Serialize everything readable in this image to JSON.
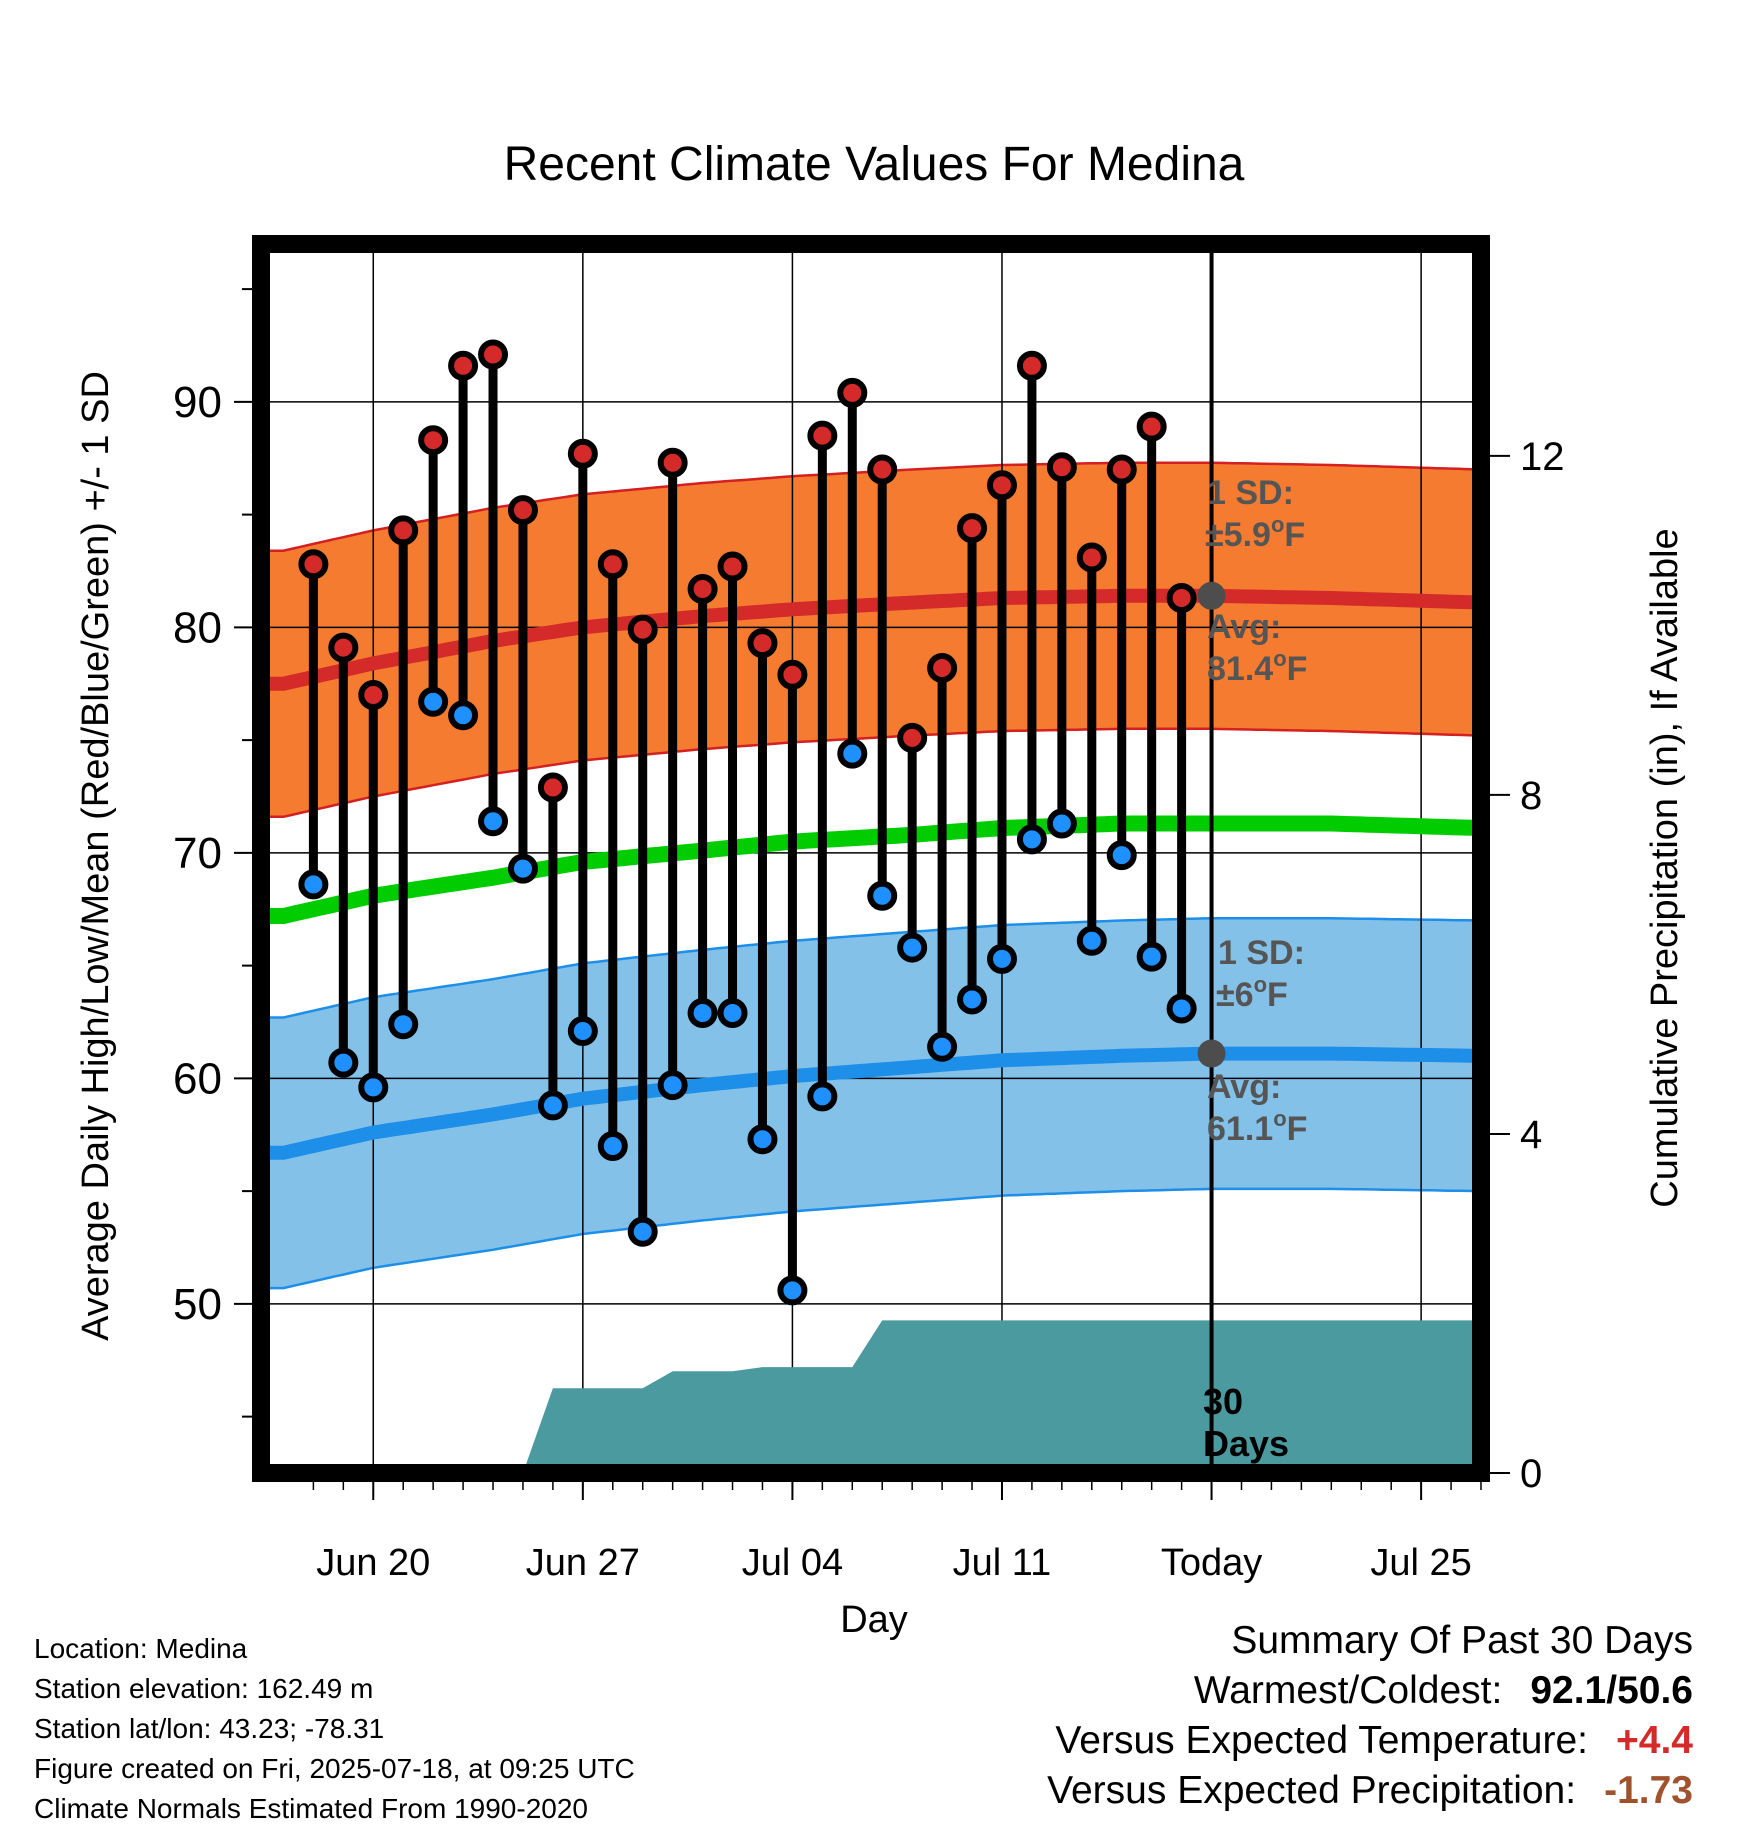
{
  "chart_data": {
    "type": "line",
    "title": "Recent Climate Values For Medina",
    "xlabel": "Day",
    "ylabel": "Average Daily High/Low/Mean (Red/Blue/Green) +/- 1 SD",
    "y2label": "Cumulative Precipitation (in), If Available",
    "ylim": [
      42.5,
      97
    ],
    "y_ticks": [
      "50",
      "60",
      "70",
      "80",
      "90"
    ],
    "y2lim": [
      0,
      14.5
    ],
    "y2_ticks": [
      "0",
      "4",
      "8",
      "12"
    ],
    "x_tick_labels": [
      "Jun 20",
      "Jun 27",
      "Jul 04",
      "Jul 11",
      "Today",
      "Jul 25"
    ],
    "x_tick_dates": [
      "2025-06-20",
      "2025-06-27",
      "2025-07-04",
      "2025-07-11",
      "2025-07-18",
      "2025-07-25"
    ],
    "x_range": [
      "2025-06-16T18:00",
      "2025-07-27T12:00"
    ],
    "today": "2025-07-18",
    "grid": true,
    "days": [
      "2025-06-18",
      "2025-06-19",
      "2025-06-20",
      "2025-06-21",
      "2025-06-22",
      "2025-06-23",
      "2025-06-24",
      "2025-06-25",
      "2025-06-26",
      "2025-06-27",
      "2025-06-28",
      "2025-06-29",
      "2025-06-30",
      "2025-07-01",
      "2025-07-02",
      "2025-07-03",
      "2025-07-04",
      "2025-07-05",
      "2025-07-06",
      "2025-07-07",
      "2025-07-08",
      "2025-07-09",
      "2025-07-10",
      "2025-07-11",
      "2025-07-12",
      "2025-07-13",
      "2025-07-14",
      "2025-07-15",
      "2025-07-16",
      "2025-07-17"
    ],
    "daily_high": [
      82.8,
      79.1,
      77.0,
      84.3,
      88.3,
      91.6,
      92.1,
      85.2,
      72.9,
      87.7,
      82.8,
      79.9,
      87.3,
      81.7,
      82.7,
      79.3,
      77.9,
      88.5,
      90.4,
      87.0,
      75.1,
      78.2,
      84.4,
      86.3,
      91.6,
      87.1,
      83.1,
      87.0,
      88.9,
      81.3
    ],
    "daily_low": [
      68.6,
      60.7,
      59.6,
      62.4,
      76.7,
      76.1,
      71.4,
      69.3,
      58.8,
      62.1,
      57.0,
      53.2,
      59.7,
      62.9,
      62.9,
      57.3,
      50.6,
      59.2,
      74.4,
      68.1,
      65.8,
      61.4,
      63.5,
      65.3,
      70.6,
      71.3,
      66.1,
      69.9,
      65.4,
      63.1
    ],
    "normal_dates": [
      "2025-06-17",
      "2025-06-20",
      "2025-06-24",
      "2025-06-27",
      "2025-07-01",
      "2025-07-04",
      "2025-07-08",
      "2025-07-11",
      "2025-07-15",
      "2025-07-18",
      "2025-07-22",
      "2025-07-27"
    ],
    "normal_high": [
      77.5,
      78.4,
      79.4,
      80.0,
      80.5,
      80.8,
      81.1,
      81.3,
      81.4,
      81.4,
      81.3,
      81.1
    ],
    "normal_high_sd": 5.9,
    "normal_low": [
      56.7,
      57.6,
      58.4,
      59.1,
      59.7,
      60.1,
      60.5,
      60.8,
      61.0,
      61.1,
      61.1,
      61.0
    ],
    "normal_low_sd": 6,
    "normal_mean": [
      67.2,
      68.1,
      68.9,
      69.6,
      70.1,
      70.5,
      70.8,
      71.1,
      71.3,
      71.3,
      71.3,
      71.1
    ],
    "precip_dates": [
      "2025-06-25",
      "2025-06-26",
      "2025-06-29",
      "2025-06-30",
      "2025-07-02",
      "2025-07-03",
      "2025-07-05",
      "2025-07-06",
      "2025-07-07",
      "2025-07-18",
      "2025-07-27"
    ],
    "precip_cum": [
      0.0,
      1.0,
      1.0,
      1.2,
      1.2,
      1.25,
      1.25,
      1.25,
      1.8,
      1.8,
      1.8
    ],
    "annotations": {
      "high_sd_label": "1 SD:",
      "high_sd_value": "±5.9",
      "high_avg_label": "Avg:",
      "high_avg_value": "81.4",
      "low_sd_label": "1 SD:",
      "low_sd_value": "±6",
      "low_avg_label": "Avg:",
      "low_avg_value": "61.1",
      "deg_symbol": "o",
      "unit": "F",
      "precip_label_line1": "30",
      "precip_label_line2": "Days"
    },
    "colors": {
      "high_band": "#f47b30",
      "high_band_edge": "#d42020",
      "high_line": "#d42a2a",
      "low_band": "#83c1e8",
      "low_band_edge": "#1e8fe8",
      "low_line": "#1e8fe8",
      "mean_line": "#00cc00",
      "precip": "#4a9aa0",
      "high_marker": "#d42a2a",
      "low_marker": "#1e90ff",
      "today_marker": "#4d4d4d",
      "annotation_text": "#555555"
    }
  },
  "footer": {
    "location": "Location: Medina",
    "elevation": "Station elevation: 162.49 m",
    "latlon": "Station lat/lon: 43.23; -78.31",
    "created": "Figure created on Fri, 2025-07-18, at 09:25 UTC",
    "normals": "Climate Normals Estimated From 1990-2020"
  },
  "summary": {
    "title": "Summary Of Past 30 Days",
    "warm_cold_label": "Warmest/Coldest:",
    "warm_cold_value": "92.1/50.6",
    "temp_label": "Versus Expected Temperature:",
    "temp_value": "+4.4",
    "temp_color": "#d42a2a",
    "precip_label": "Versus Expected Precipitation:",
    "precip_value": "-1.73",
    "precip_color": "#a0522d"
  }
}
